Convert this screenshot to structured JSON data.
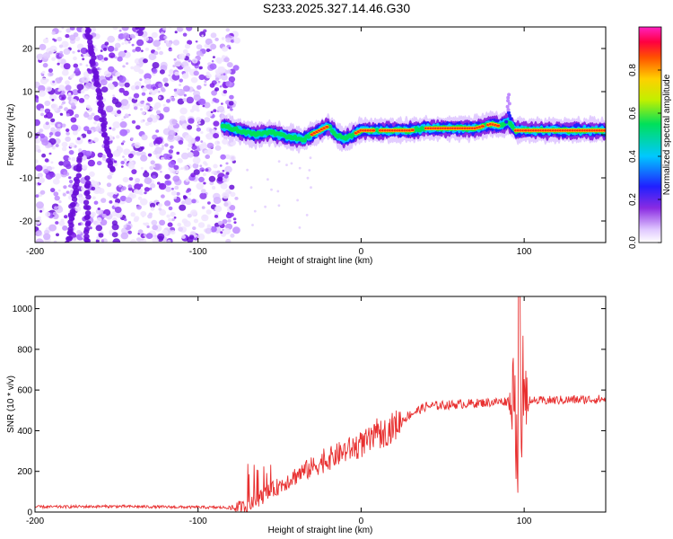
{
  "title": "S233.2025.327.14.46.G30",
  "chart_data": [
    {
      "type": "heatmap",
      "xlabel": "Height of straight line (km)",
      "ylabel": "Frequency (Hz)",
      "xlim": [
        -200,
        150
      ],
      "ylim": [
        -25,
        25
      ],
      "xticks": [
        -200,
        -100,
        0,
        100
      ],
      "yticks": [
        -20,
        -10,
        0,
        10,
        20
      ],
      "colorbar_label": "Normalized spectral amplitude",
      "colorbar_range": [
        0,
        1
      ],
      "colorbar_ticks": [
        0.0,
        0.2,
        0.4,
        0.6,
        0.8
      ],
      "ridge": {
        "x": [
          -85,
          -75,
          -65,
          -55,
          -45,
          -35,
          -28,
          -20,
          -15,
          -10,
          -5,
          0,
          5,
          10,
          20,
          30,
          40,
          50,
          60,
          70,
          80,
          85,
          90,
          95,
          100,
          110,
          120,
          130,
          140,
          150
        ],
        "y": [
          2,
          1,
          0,
          0.5,
          -0.5,
          -1,
          0.5,
          2,
          0,
          -1,
          0,
          1,
          1,
          1,
          1,
          1,
          1.5,
          1.5,
          1.5,
          1.5,
          2.5,
          2,
          3,
          1,
          1,
          1,
          1,
          1,
          1,
          1
        ]
      }
    },
    {
      "type": "line",
      "xlabel": "Height of straight line (km)",
      "ylabel": "SNR (10 * v/v)",
      "xlim": [
        -200,
        150
      ],
      "ylim": [
        0,
        1060
      ],
      "xticks": [
        -200,
        -100,
        0,
        100
      ],
      "yticks": [
        0,
        200,
        400,
        600,
        800,
        1000
      ],
      "color": "#e83030",
      "envelope": {
        "x": [
          -200,
          -150,
          -120,
          -80,
          -70,
          -60,
          -50,
          -40,
          -30,
          -20,
          -10,
          0,
          10,
          20,
          30,
          40,
          60,
          80,
          90,
          95,
          100,
          105,
          120,
          150
        ],
        "y": [
          25,
          28,
          25,
          22,
          25,
          80,
          130,
          180,
          220,
          260,
          300,
          330,
          370,
          420,
          480,
          520,
          530,
          540,
          545,
          550,
          540,
          545,
          550,
          555
        ]
      }
    }
  ]
}
